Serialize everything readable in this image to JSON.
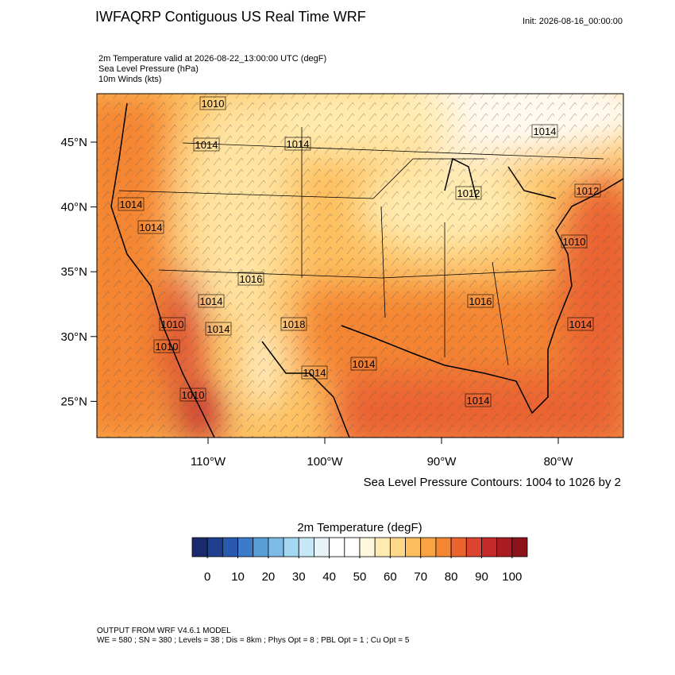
{
  "header": {
    "title": "IWFAQRP Contiguous US Real Time WRF",
    "init": "Init: 2026-08-16_00:00:00"
  },
  "fields": [
    "2m Temperature valid at 2026-08-22_13:00:00 UTC   (degF)",
    "Sea Level Pressure   (hPa)",
    "10m Winds   (kts)"
  ],
  "map": {
    "lat_ticks": [
      {
        "value": 45,
        "label": "45°N"
      },
      {
        "value": 40,
        "label": "40°N"
      },
      {
        "value": 35,
        "label": "35°N"
      },
      {
        "value": 30,
        "label": "30°N"
      },
      {
        "value": 25,
        "label": "25°N"
      }
    ],
    "lon_ticks": [
      {
        "value": -110,
        "label": "110°W"
      },
      {
        "value": -100,
        "label": "100°W"
      },
      {
        "value": -90,
        "label": "90°W"
      },
      {
        "value": -80,
        "label": "80°W"
      }
    ],
    "contour_labels": [
      "1010",
      "1014",
      "1014",
      "1014",
      "1014",
      "1014",
      "1012",
      "1012",
      "1010",
      "1014",
      "1018",
      "1010",
      "1010",
      "1014",
      "1016",
      "1014",
      "1014",
      "1014",
      "1010",
      "1014",
      "1016"
    ],
    "contour_note": "Sea Level Pressure Contours: 1004 to 1026 by 2"
  },
  "colorbar": {
    "title": "2m Temperature  (degF)",
    "ticks": [
      0,
      10,
      20,
      30,
      40,
      50,
      60,
      70,
      80,
      90,
      100
    ],
    "colors": [
      "#1a2a6c",
      "#1f3f8f",
      "#2a5ab0",
      "#3b7bc8",
      "#5a9ed8",
      "#7bbbe6",
      "#a4d8f2",
      "#c6e8f6",
      "#e6f4fa",
      "#ffffff",
      "#ffffff",
      "#fff8de",
      "#ffebaf",
      "#ffd98a",
      "#fdbf5e",
      "#f9a342",
      "#f48532",
      "#ea6430",
      "#da4430",
      "#c42a2a",
      "#a81c22",
      "#8b1319"
    ]
  },
  "footer": [
    "OUTPUT FROM WRF V4.6.1 MODEL",
    "WE = 580 ; SN = 380 ; Levels = 38 ; Dis = 8km ; Phys Opt = 8 ; PBL Opt = 1 ; Cu Opt = 5"
  ]
}
